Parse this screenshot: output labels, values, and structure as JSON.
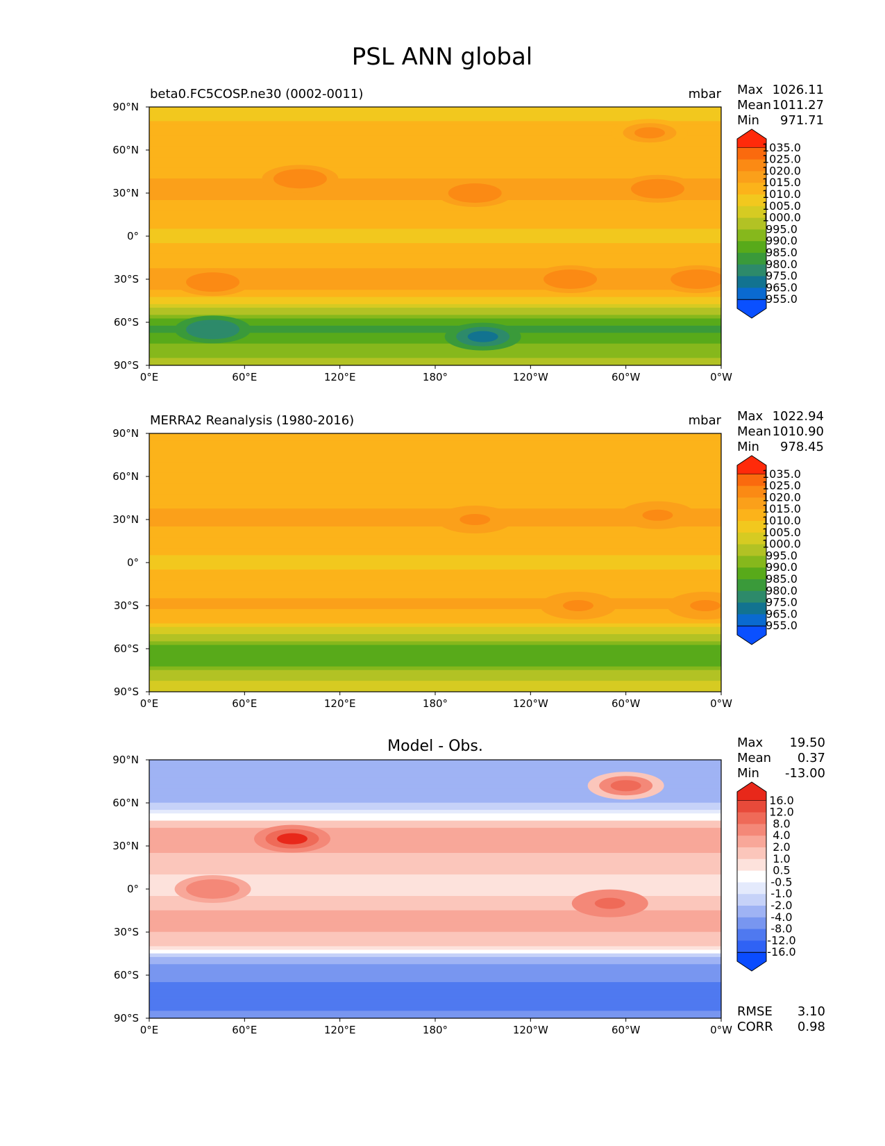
{
  "page_title": "PSL ANN global",
  "x_ticks": [
    "0°E",
    "60°E",
    "120°E",
    "180°",
    "120°W",
    "60°W",
    "0°W"
  ],
  "y_ticks": [
    "90°N",
    "60°N",
    "30°N",
    "0°",
    "30°S",
    "60°S",
    "90°S"
  ],
  "stat_labels": {
    "max": "Max",
    "mean": "Mean",
    "min": "Min",
    "rmse": "RMSE",
    "corr": "CORR"
  },
  "colors": {
    "abs_palette": [
      "#0a50ff",
      "#0a6ad0",
      "#127390",
      "#2d8a6a",
      "#3a9a3a",
      "#58aa1a",
      "#86b81c",
      "#b2c224",
      "#d6cb22",
      "#f2c81e",
      "#fcb31a",
      "#fba01a",
      "#fb8a14",
      "#fa6a0e",
      "#ff2a0a"
    ],
    "diff_palette": [
      "#0a4cff",
      "#2f62f5",
      "#4f79f0",
      "#7896f0",
      "#9fb3f4",
      "#c6d2f8",
      "#e4eafc",
      "#ffffff",
      "#fde2dc",
      "#fbc6bb",
      "#f8a799",
      "#f48878",
      "#ef6a58",
      "#e84a3a",
      "#e8281a"
    ]
  },
  "chart_data": [
    {
      "type": "heatmap",
      "title": "",
      "left_title": "beta0.FC5COSP.ne30 (0002-0011)",
      "units": "mbar",
      "stats": {
        "max": "1026.11",
        "mean": "1011.27",
        "min": "971.71"
      },
      "colorbar_ticks": [
        "1035.0",
        "1025.0",
        "1020.0",
        "1015.0",
        "1010.0",
        "1005.0",
        "1000.0",
        "995.0",
        "990.0",
        "985.0",
        "980.0",
        "975.0",
        "965.0",
        "955.0"
      ],
      "zonal_mean": [
        {
          "lat": 90,
          "value": 1007
        },
        {
          "lat": 75,
          "value": 1011
        },
        {
          "lat": 60,
          "value": 1012
        },
        {
          "lat": 45,
          "value": 1014
        },
        {
          "lat": 30,
          "value": 1017
        },
        {
          "lat": 15,
          "value": 1012
        },
        {
          "lat": 0,
          "value": 1009
        },
        {
          "lat": -15,
          "value": 1012
        },
        {
          "lat": -30,
          "value": 1018
        },
        {
          "lat": -40,
          "value": 1014
        },
        {
          "lat": -50,
          "value": 1002
        },
        {
          "lat": -58,
          "value": 988
        },
        {
          "lat": -65,
          "value": 982
        },
        {
          "lat": -75,
          "value": 990
        },
        {
          "lat": -90,
          "value": 997
        }
      ],
      "highs": [
        {
          "lon": 95,
          "lat": 40,
          "value": 1024
        },
        {
          "lon": 205,
          "lat": 30,
          "value": 1023
        },
        {
          "lon": 320,
          "lat": 33,
          "value": 1024
        },
        {
          "lon": 40,
          "lat": -32,
          "value": 1022
        },
        {
          "lon": 265,
          "lat": -30,
          "value": 1022
        },
        {
          "lon": 345,
          "lat": -30,
          "value": 1022
        },
        {
          "lon": 315,
          "lat": 72,
          "value": 1020
        }
      ],
      "lows": [
        {
          "lon": 210,
          "lat": -70,
          "value": 972
        },
        {
          "lon": 40,
          "lat": -65,
          "value": 976
        }
      ]
    },
    {
      "type": "heatmap",
      "title": "",
      "left_title": "MERRA2 Reanalysis (1980-2016)",
      "units": "mbar",
      "stats": {
        "max": "1022.94",
        "mean": "1010.90",
        "min": "978.45"
      },
      "colorbar_ticks": [
        "1035.0",
        "1025.0",
        "1020.0",
        "1015.0",
        "1010.0",
        "1005.0",
        "1000.0",
        "995.0",
        "990.0",
        "985.0",
        "980.0",
        "975.0",
        "965.0",
        "955.0"
      ],
      "zonal_mean": [
        {
          "lat": 90,
          "value": 1012
        },
        {
          "lat": 75,
          "value": 1012
        },
        {
          "lat": 60,
          "value": 1012
        },
        {
          "lat": 45,
          "value": 1014
        },
        {
          "lat": 30,
          "value": 1016
        },
        {
          "lat": 15,
          "value": 1012
        },
        {
          "lat": 0,
          "value": 1009
        },
        {
          "lat": -15,
          "value": 1012
        },
        {
          "lat": -30,
          "value": 1016
        },
        {
          "lat": -40,
          "value": 1013
        },
        {
          "lat": -50,
          "value": 1000
        },
        {
          "lat": -60,
          "value": 988
        },
        {
          "lat": -68,
          "value": 986
        },
        {
          "lat": -78,
          "value": 998
        },
        {
          "lat": -90,
          "value": 1004
        }
      ],
      "highs": [
        {
          "lon": 205,
          "lat": 30,
          "value": 1021
        },
        {
          "lon": 320,
          "lat": 33,
          "value": 1021
        },
        {
          "lon": 270,
          "lat": -30,
          "value": 1020
        },
        {
          "lon": 350,
          "lat": -30,
          "value": 1020
        }
      ],
      "lows": []
    },
    {
      "type": "heatmap",
      "title": "Model - Obs.",
      "left_title": "",
      "units": "",
      "stats": {
        "max": "19.50",
        "mean": "0.37",
        "min": "-13.00"
      },
      "rmse": "3.10",
      "corr": "0.98",
      "colorbar_ticks": [
        "16.0",
        "12.0",
        "8.0",
        "4.0",
        "2.0",
        "1.0",
        "0.5",
        "-0.5",
        "-1.0",
        "-2.0",
        "-4.0",
        "-8.0",
        "-12.0",
        "-16.0"
      ],
      "zonal_mean": [
        {
          "lat": 90,
          "value": -3
        },
        {
          "lat": 80,
          "value": -2
        },
        {
          "lat": 65,
          "value": -3
        },
        {
          "lat": 50,
          "value": 0
        },
        {
          "lat": 40,
          "value": 3
        },
        {
          "lat": 25,
          "value": 2
        },
        {
          "lat": 10,
          "value": 1
        },
        {
          "lat": 0,
          "value": 0.5
        },
        {
          "lat": -15,
          "value": 2
        },
        {
          "lat": -30,
          "value": 2
        },
        {
          "lat": -40,
          "value": 1
        },
        {
          "lat": -45,
          "value": -1
        },
        {
          "lat": -55,
          "value": -5
        },
        {
          "lat": -65,
          "value": -8
        },
        {
          "lat": -80,
          "value": -9
        },
        {
          "lat": -90,
          "value": -7
        }
      ],
      "highs": [
        {
          "lon": 90,
          "lat": 35,
          "value": 16
        },
        {
          "lon": 300,
          "lat": 72,
          "value": 9
        },
        {
          "lon": 290,
          "lat": -10,
          "value": 10
        },
        {
          "lon": 40,
          "lat": 0,
          "value": 6
        }
      ],
      "lows": []
    }
  ]
}
